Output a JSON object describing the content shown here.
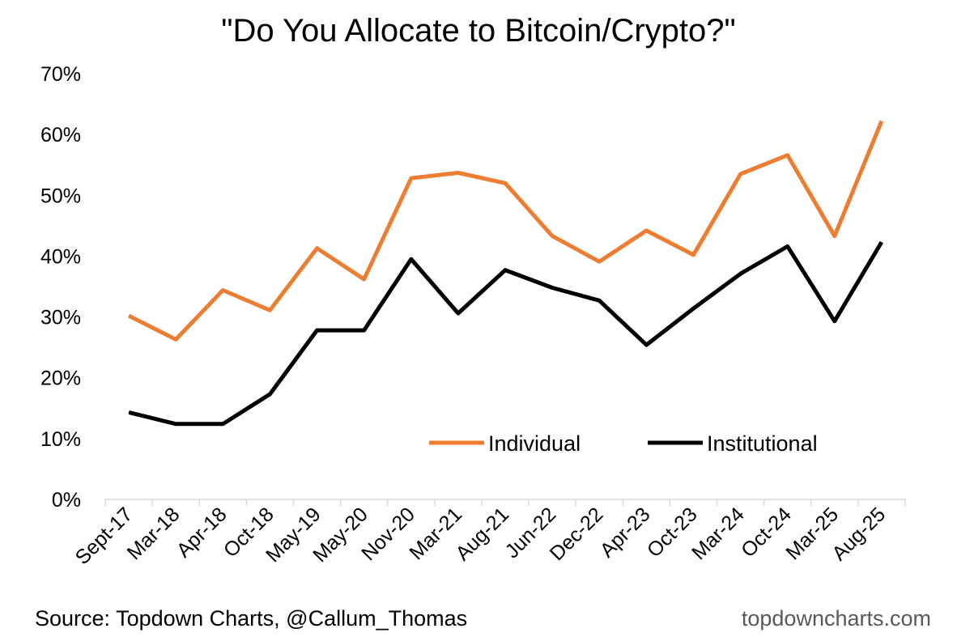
{
  "chart_data": {
    "type": "line",
    "title": "\"Do You Allocate to Bitcoin/Crypto?\"",
    "xlabel": "",
    "ylabel": "",
    "ylim": [
      0,
      70
    ],
    "y_tick_values": [
      0,
      10,
      20,
      30,
      40,
      50,
      60,
      70
    ],
    "y_tick_format": "percent",
    "grid": false,
    "legend_position": "bottom-right",
    "categories": [
      "Sept-17",
      "Mar-18",
      "Apr-18",
      "Oct-18",
      "May-19",
      "May-20",
      "Nov-20",
      "Mar-21",
      "Aug-21",
      "Jun-22",
      "Dec-22",
      "Apr-23",
      "Oct-23",
      "Mar-24",
      "Oct-24",
      "Mar-25",
      "Aug-25"
    ],
    "series": [
      {
        "name": "Individual",
        "color": "#ED7D31",
        "values": [
          30.2,
          26.3,
          34.4,
          31.1,
          41.3,
          36.2,
          52.8,
          53.7,
          52.0,
          43.3,
          39.1,
          44.2,
          40.2,
          53.5,
          56.6,
          43.3,
          62.2
        ]
      },
      {
        "name": "Institutional",
        "color": "#000000",
        "values": [
          14.3,
          12.4,
          12.4,
          17.3,
          27.8,
          27.8,
          39.5,
          30.6,
          37.7,
          34.8,
          32.7,
          25.4,
          31.4,
          37.1,
          41.6,
          29.3,
          42.3
        ]
      }
    ]
  },
  "source_text": "Source: Topdown Charts, @Callum_Thomas",
  "website_text": "topdowncharts.com"
}
